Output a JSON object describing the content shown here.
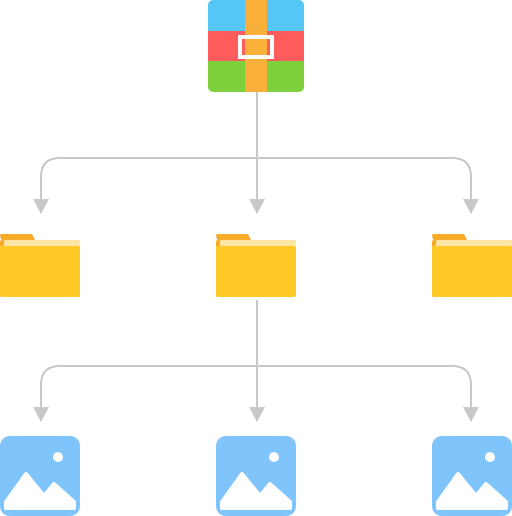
{
  "diagram": {
    "root": {
      "name": "archive",
      "icon": "archive-icon",
      "colors": {
        "top": "#54c7f7",
        "middle": "#fd5c5c",
        "bottom": "#7fd03d",
        "strap": "#fbb03b",
        "buckle": "#ffffff"
      }
    },
    "folders": [
      {
        "name": "folder-left",
        "icon": "folder-icon",
        "opens": false
      },
      {
        "name": "folder-center",
        "icon": "folder-icon",
        "opens": true
      },
      {
        "name": "folder-right",
        "icon": "folder-icon",
        "opens": false
      }
    ],
    "images": [
      {
        "name": "image-left",
        "icon": "image-icon"
      },
      {
        "name": "image-center",
        "icon": "image-icon"
      },
      {
        "name": "image-right",
        "icon": "image-icon"
      }
    ],
    "colors": {
      "connector": "#c8c8c8",
      "folder_back": "#f9ac2a",
      "folder_paper": "#fde6a3",
      "folder_front": "#ffc928",
      "image_bg": "#80c4fc",
      "image_fg": "#ffffff"
    }
  }
}
